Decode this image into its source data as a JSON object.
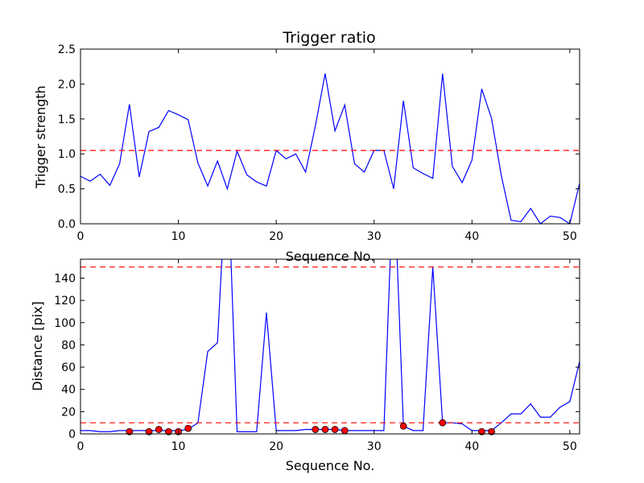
{
  "figure": {
    "background": "#ffffff",
    "line_color": "#0000ff",
    "threshold_color": "#ff0000",
    "marker_color": "#ff0000"
  },
  "chart_data": [
    {
      "type": "line",
      "title": "Trigger ratio",
      "xlabel": "Sequence No.",
      "ylabel": "Trigger strength",
      "xlim": [
        0,
        51
      ],
      "ylim": [
        0,
        2.5
      ],
      "xticks": [
        0,
        10,
        20,
        30,
        40,
        50
      ],
      "xtick_labels": [
        "0",
        "10",
        "20",
        "30",
        "40",
        "50"
      ],
      "yticks": [
        0,
        0.5,
        1.0,
        1.5,
        2.0,
        2.5
      ],
      "ytick_labels": [
        "0.0",
        "0.5",
        "1.0",
        "1.5",
        "2.0",
        "2.5"
      ],
      "grid": false,
      "series": [
        {
          "x": [
            0,
            1,
            2,
            3,
            4,
            5,
            6,
            7,
            8,
            9,
            10,
            11,
            12,
            13,
            14,
            15,
            16,
            17,
            18,
            19,
            20,
            21,
            22,
            23,
            24,
            25,
            26,
            27,
            28,
            29,
            30,
            31,
            32,
            33,
            34,
            35,
            36,
            37,
            38,
            39,
            40,
            41,
            42,
            43,
            44,
            45,
            46,
            47,
            48,
            49,
            50,
            51
          ],
          "y": [
            0.68,
            0.61,
            0.71,
            0.55,
            0.86,
            1.71,
            0.67,
            1.32,
            1.38,
            1.62,
            1.56,
            1.49,
            0.87,
            0.54,
            0.9,
            0.5,
            1.04,
            0.7,
            0.6,
            0.54,
            1.05,
            0.93,
            1.0,
            0.74,
            1.4,
            2.15,
            1.33,
            1.7,
            0.86,
            0.74,
            1.05,
            1.05,
            0.5,
            1.76,
            0.8,
            0.72,
            0.65,
            2.15,
            0.82,
            0.59,
            0.91,
            1.93,
            1.51,
            0.69,
            0.05,
            0.03,
            0.22,
            0.0,
            0.11,
            0.09,
            0.0,
            0.58
          ]
        }
      ],
      "hlines": [
        1.05
      ]
    },
    {
      "type": "line",
      "xlabel": "Sequence No.",
      "ylabel": "Distance [pix]",
      "xlim": [
        0,
        51
      ],
      "ylim": [
        0,
        157
      ],
      "xticks": [
        0,
        10,
        20,
        30,
        40,
        50
      ],
      "xtick_labels": [
        "0",
        "10",
        "20",
        "30",
        "40",
        "50"
      ],
      "yticks": [
        0,
        20,
        40,
        60,
        80,
        100,
        120,
        140
      ],
      "ytick_labels": [
        "0",
        "20",
        "40",
        "60",
        "80",
        "100",
        "120",
        "140"
      ],
      "grid": false,
      "series": [
        {
          "x": [
            0,
            1,
            2,
            3,
            4,
            5,
            6,
            7,
            8,
            9,
            10,
            11,
            12,
            13,
            14,
            15,
            16,
            17,
            18,
            19,
            20,
            21,
            22,
            23,
            24,
            25,
            26,
            27,
            28,
            29,
            30,
            31,
            32,
            33,
            34,
            35,
            36,
            37,
            38,
            39,
            40,
            41,
            42,
            43,
            44,
            45,
            46,
            47,
            48,
            49,
            50,
            51
          ],
          "y": [
            3,
            3,
            2,
            2,
            3,
            3,
            3,
            3,
            3,
            3,
            3,
            4,
            10,
            74,
            82,
            250,
            2,
            2,
            2,
            109,
            3,
            3,
            3,
            4,
            4,
            4,
            4,
            3,
            3,
            3,
            3,
            3,
            240,
            7,
            3,
            3,
            150,
            10,
            10,
            9,
            3,
            3,
            3,
            10,
            18,
            18,
            27,
            15,
            15,
            24,
            29,
            65
          ]
        }
      ],
      "markers": {
        "x": [
          5,
          7,
          8,
          9,
          10,
          11,
          24,
          25,
          26,
          27,
          33,
          37,
          41,
          42
        ],
        "y": [
          2,
          2,
          4,
          2,
          2,
          5,
          4,
          4,
          4,
          3,
          7,
          10,
          2,
          2
        ]
      },
      "hlines": [
        10,
        150
      ]
    }
  ]
}
